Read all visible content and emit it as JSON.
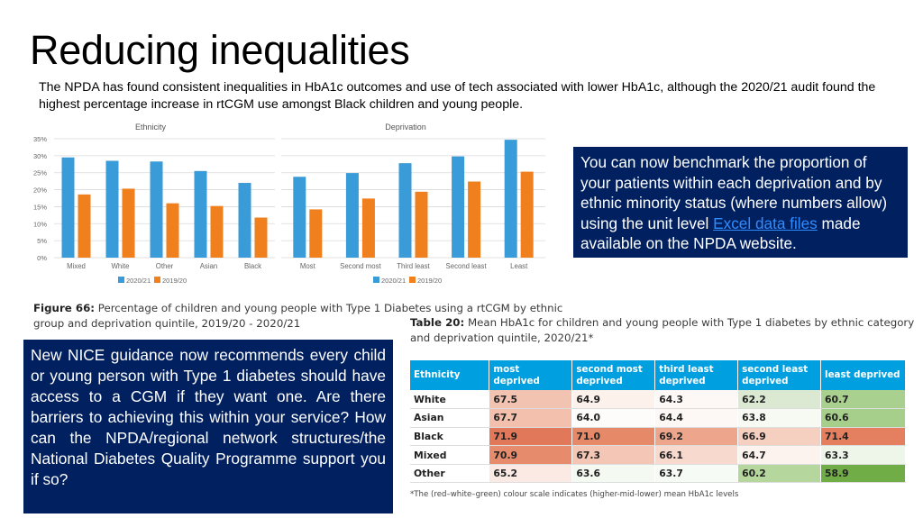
{
  "slide": {
    "title": "Reducing inequalities",
    "subtitle": "The NPDA has found consistent inequalities in HbA1c outcomes and use of tech associated with lower HbA1c, although the 2020/21 audit found the highest percentage increase in rtCGM use amongst Black children and young people."
  },
  "figure": {
    "label": "Figure 66:",
    "caption": "Percentage of children and young people with Type 1 Diabetes using a rtCGM by ethnic group and deprivation quintile, 2019/20 - 2020/21"
  },
  "right_box": {
    "text_before": "You can now benchmark the proportion of your patients within each deprivation and by ethnic minority status (where numbers allow) using the unit level ",
    "link": "Excel data files",
    "text_after": " made available on the NPDA website."
  },
  "left_box": {
    "text": "New NICE guidance now recommends every child or young person with Type 1 diabetes should have access to a CGM if they want one. Are there barriers to achieving this within your service? How can the NPDA/regional network structures/the National Diabetes Quality Programme support you if so?"
  },
  "table": {
    "label": "Table 20:",
    "caption": "Mean HbA1c for children and young people with Type 1 diabetes by ethnic category and deprivation quintile, 2020/21*",
    "headers": [
      "Ethnicity",
      "most deprived",
      "second most deprived",
      "third least deprived",
      "second least deprived",
      "least deprived"
    ],
    "rows": [
      {
        "ethnicity": "White",
        "values": [
          "67.5",
          "64.9",
          "64.3",
          "62.2",
          "60.7"
        ],
        "colors": [
          "#f3c3b1",
          "#fdf1ec",
          "#fdf8f6",
          "#dbe9d3",
          "#a9d08e"
        ]
      },
      {
        "ethnicity": "Asian",
        "values": [
          "67.7",
          "64.0",
          "64.4",
          "63.8",
          "60.6"
        ],
        "colors": [
          "#f2c0ad",
          "#fefcfb",
          "#fdf7f5",
          "#f6faf3",
          "#a6cf8b"
        ]
      },
      {
        "ethnicity": "Black",
        "values": [
          "71.9",
          "71.0",
          "69.2",
          "66.9",
          "71.4"
        ],
        "colors": [
          "#e2785a",
          "#e68969",
          "#eda58c",
          "#f5cfc0",
          "#e4805f"
        ]
      },
      {
        "ethnicity": "Mixed",
        "values": [
          "70.9",
          "67.3",
          "66.1",
          "64.7",
          "63.3"
        ],
        "colors": [
          "#e68b6b",
          "#f4c6b5",
          "#f7d9ce",
          "#fcf3ef",
          "#eef6ea"
        ]
      },
      {
        "ethnicity": "Other",
        "values": [
          "65.2",
          "63.6",
          "63.7",
          "60.2",
          "58.9"
        ],
        "colors": [
          "#fbeae3",
          "#f4f9f1",
          "#f7fbf5",
          "#b5d79e",
          "#70ad47"
        ]
      }
    ],
    "note": "*The (red–white–green) colour scale indicates (higher-mid-lower) mean HbA1c levels"
  },
  "chart_data": [
    {
      "type": "bar",
      "title": "Ethnicity",
      "categories": [
        "Mixed",
        "White",
        "Other",
        "Asian",
        "Black"
      ],
      "series": [
        {
          "name": "2020/21",
          "color": "#3a9bd9",
          "values": [
            29.5,
            28.5,
            28.3,
            25.5,
            22.0
          ]
        },
        {
          "name": "2019/20",
          "color": "#f07f1e",
          "values": [
            18.6,
            20.3,
            16.0,
            15.2,
            11.8
          ]
        }
      ],
      "ylim": [
        0,
        35
      ],
      "yticks": [
        "0%",
        "5%",
        "10%",
        "15%",
        "20%",
        "25%",
        "30%",
        "35%"
      ],
      "grid": true,
      "legend": "bottom"
    },
    {
      "type": "bar",
      "title": "Deprivation",
      "categories": [
        "Most",
        "Second most",
        "Third least",
        "Second least",
        "Least"
      ],
      "series": [
        {
          "name": "2020/21",
          "color": "#3a9bd9",
          "values": [
            23.8,
            24.9,
            27.8,
            29.8,
            34.7
          ]
        },
        {
          "name": "2019/20",
          "color": "#f07f1e",
          "values": [
            14.2,
            17.4,
            19.4,
            22.4,
            25.3
          ]
        }
      ],
      "ylim": [
        0,
        35
      ],
      "grid": true,
      "legend": "bottom"
    }
  ]
}
